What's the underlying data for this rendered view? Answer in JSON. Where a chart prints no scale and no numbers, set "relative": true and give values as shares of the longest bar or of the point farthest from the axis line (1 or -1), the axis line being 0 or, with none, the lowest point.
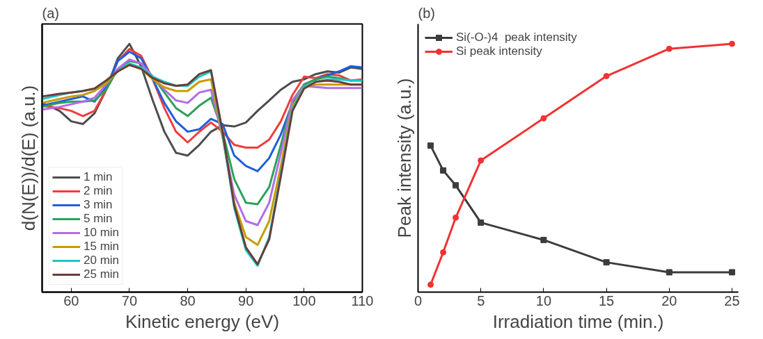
{
  "chart_data": [
    {
      "type": "line",
      "title": "(a)",
      "xlabel": "Kinetic energy (eV)",
      "ylabel": "d(N(E))/d(E) (a.u.)",
      "relative": true,
      "legend": "bottom left",
      "xlim": [
        55,
        110
      ],
      "xticks": [
        60,
        70,
        80,
        90,
        100,
        110
      ],
      "x": [
        55,
        58,
        60,
        62,
        64,
        66,
        68,
        70,
        72,
        74,
        76,
        78,
        80,
        82,
        84,
        86,
        88,
        90,
        92,
        94,
        96,
        98,
        100,
        102,
        104,
        106,
        108,
        110
      ],
      "series": [
        {
          "name": "1 min",
          "color": "#4d4d4d",
          "values": [
            0.762,
            0.73,
            0.688,
            0.677,
            0.72,
            0.815,
            0.942,
            1.0,
            0.91,
            0.772,
            0.646,
            0.561,
            0.55,
            0.593,
            0.646,
            0.672,
            0.667,
            0.683,
            0.73,
            0.772,
            0.815,
            0.847,
            0.857,
            0.878,
            0.889,
            0.884,
            0.905,
            0.899
          ]
        },
        {
          "name": "2 min",
          "color": "#f03c3c",
          "values": [
            0.751,
            0.741,
            0.73,
            0.709,
            0.73,
            0.815,
            0.931,
            0.979,
            0.952,
            0.857,
            0.741,
            0.646,
            0.603,
            0.646,
            0.683,
            0.646,
            0.593,
            0.582,
            0.582,
            0.614,
            0.688,
            0.794,
            0.868,
            0.862,
            0.878,
            0.873,
            0.852,
            0.857
          ]
        },
        {
          "name": "3 min",
          "color": "#1f5fdc",
          "values": [
            0.751,
            0.767,
            0.778,
            0.788,
            0.767,
            0.825,
            0.931,
            0.968,
            0.942,
            0.857,
            0.762,
            0.688,
            0.646,
            0.656,
            0.698,
            0.677,
            0.55,
            0.508,
            0.487,
            0.54,
            0.635,
            0.762,
            0.836,
            0.857,
            0.873,
            0.889,
            0.91,
            0.905
          ]
        },
        {
          "name": "5 min",
          "color": "#2ca05a",
          "values": [
            0.746,
            0.762,
            0.767,
            0.767,
            0.772,
            0.815,
            0.899,
            0.931,
            0.921,
            0.868,
            0.804,
            0.741,
            0.709,
            0.751,
            0.783,
            0.646,
            0.455,
            0.36,
            0.354,
            0.423,
            0.593,
            0.772,
            0.836,
            0.857,
            0.868,
            0.862,
            0.852,
            0.852
          ]
        },
        {
          "name": "10 min",
          "color": "#b06ee6",
          "values": [
            0.735,
            0.746,
            0.757,
            0.767,
            0.783,
            0.836,
            0.899,
            0.937,
            0.921,
            0.868,
            0.815,
            0.772,
            0.762,
            0.804,
            0.815,
            0.624,
            0.392,
            0.286,
            0.27,
            0.36,
            0.561,
            0.772,
            0.83,
            0.826,
            0.822,
            0.822,
            0.822,
            0.822
          ]
        },
        {
          "name": "15 min",
          "color": "#c89b00",
          "values": [
            0.762,
            0.778,
            0.788,
            0.794,
            0.81,
            0.841,
            0.889,
            0.915,
            0.899,
            0.857,
            0.825,
            0.81,
            0.81,
            0.847,
            0.857,
            0.624,
            0.36,
            0.222,
            0.19,
            0.286,
            0.508,
            0.751,
            0.825,
            0.836,
            0.836,
            0.836,
            0.836,
            0.836
          ]
        },
        {
          "name": "20 min",
          "color": "#19c8c8",
          "values": [
            0.778,
            0.794,
            0.804,
            0.81,
            0.82,
            0.852,
            0.889,
            0.921,
            0.905,
            0.868,
            0.847,
            0.831,
            0.831,
            0.868,
            0.889,
            0.635,
            0.339,
            0.169,
            0.106,
            0.222,
            0.476,
            0.741,
            0.825,
            0.847,
            0.857,
            0.857,
            0.852,
            0.852
          ]
        },
        {
          "name": "25 min",
          "color": "#6b3c3c",
          "values": [
            0.788,
            0.799,
            0.804,
            0.81,
            0.82,
            0.852,
            0.889,
            0.915,
            0.899,
            0.862,
            0.841,
            0.831,
            0.836,
            0.878,
            0.894,
            0.646,
            0.349,
            0.18,
            0.112,
            0.212,
            0.466,
            0.73,
            0.82,
            0.847,
            0.852,
            0.847,
            0.836,
            0.836
          ]
        }
      ]
    },
    {
      "type": "line",
      "title": "(b)",
      "xlabel": "Irradiation time (min.)",
      "ylabel": "Peak intensity (a.u.)",
      "relative": true,
      "legend": "top left",
      "xlim": [
        0,
        25.5
      ],
      "xticks": [
        0,
        5,
        10,
        15,
        20,
        25
      ],
      "x": [
        1,
        2,
        3,
        5,
        10,
        15,
        20,
        25
      ],
      "series": [
        {
          "name": "Si(-O-)4  peak intensity",
          "color": "#3c3c3c",
          "marker": "square",
          "values": [
            0.59,
            0.49,
            0.43,
            0.28,
            0.21,
            0.12,
            0.08,
            0.08
          ]
        },
        {
          "name": "Si peak intensity",
          "color": "#f03232",
          "marker": "circle",
          "values": [
            0.03,
            0.16,
            0.3,
            0.53,
            0.7,
            0.87,
            0.98,
            1.0
          ]
        }
      ]
    }
  ]
}
